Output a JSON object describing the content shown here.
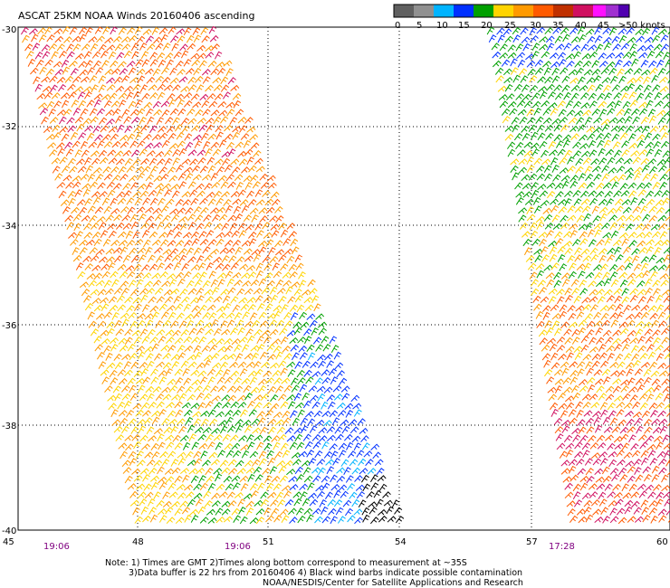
{
  "title": "ASCAT 25KM NOAA Winds 20160406 ascending",
  "legend": {
    "colors": [
      "#606060",
      "#909090",
      "#00b4ff",
      "#0030ff",
      "#00a000",
      "#ffd400",
      "#ff9a00",
      "#ff5a00",
      "#c03000",
      "#d01060",
      "#ff10ff",
      "#a030d0",
      "#5000b0"
    ],
    "ticks": [
      "0",
      "5",
      "10",
      "15",
      "20",
      "25",
      "30",
      "35",
      "40",
      "45",
      ">50 knots"
    ]
  },
  "lat_labels": [
    "-30",
    "-32",
    "-34",
    "-36",
    "-38",
    "-40"
  ],
  "lon_labels": [
    "45",
    "48",
    "51",
    "54",
    "57",
    "60"
  ],
  "pass_times": [
    "19:06",
    "19:06",
    "17:28"
  ],
  "notes": [
    "Note: 1) Times are GMT 2)Times along bottom correspond to measurement at ~35S",
    "3)Data buffer is 22 hrs from 20160406 4) Black wind barbs indicate possible contamination",
    "NOAA/NESDIS/Center for Satellite Applications and Research"
  ]
}
